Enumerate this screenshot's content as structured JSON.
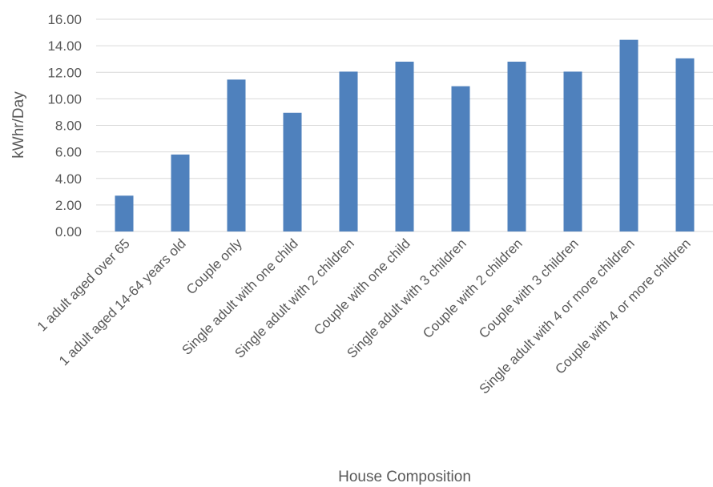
{
  "chart_data": {
    "type": "bar",
    "xlabel": "House Composition",
    "ylabel": "kWhr/Day",
    "ylim": [
      0,
      16
    ],
    "ytick_step": 2,
    "ytick_labels": [
      "0.00",
      "2.00",
      "4.00",
      "6.00",
      "8.00",
      "10.00",
      "12.00",
      "14.00",
      "16.00"
    ],
    "grid": true,
    "legend": "none",
    "bar_color": "#4f81bd",
    "categories": [
      "1 adult aged over 65",
      "1 adult aged 14-64 years old",
      "Couple only",
      "Single adult with one child",
      "Single adult with 2 children",
      "Couple with one child",
      "Single adult with 3 children",
      "Couple with 2 children",
      "Couple with 3 children",
      "Single adult with 4 or more children",
      "Couple with 4 or more children"
    ],
    "values": [
      2.7,
      5.8,
      11.45,
      8.95,
      12.05,
      12.8,
      10.95,
      12.8,
      12.05,
      14.45,
      13.05
    ]
  }
}
